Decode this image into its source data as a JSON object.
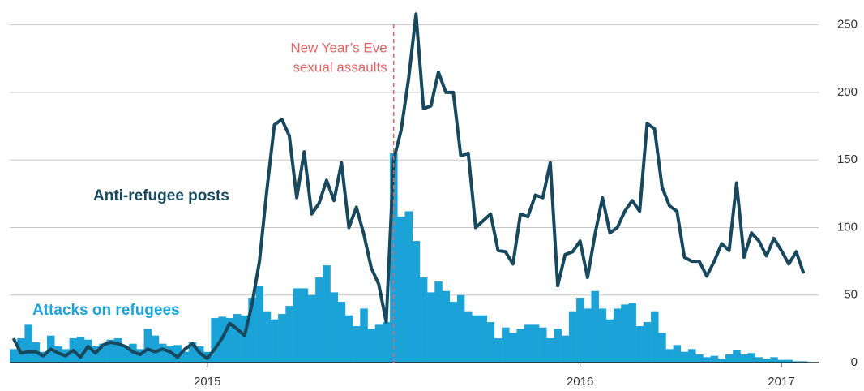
{
  "chart_data": {
    "type": "combo",
    "annotation": {
      "text": [
        "New Year’s Eve",
        "sexual assaults"
      ],
      "x": 2016.0,
      "color": "#e06666"
    },
    "x": [
      2014.98,
      2015.0,
      2015.02,
      2015.04,
      2015.06,
      2015.08,
      2015.1,
      2015.12,
      2015.14,
      2015.16,
      2015.18,
      2015.2,
      2015.22,
      2015.24,
      2015.26,
      2015.28,
      2015.3,
      2015.32,
      2015.34,
      2015.36,
      2015.38,
      2015.4,
      2015.42,
      2015.44,
      2015.46,
      2015.48,
      2015.5,
      2015.52,
      2015.54,
      2015.56,
      2015.58,
      2015.6,
      2015.62,
      2015.64,
      2015.66,
      2015.68,
      2015.7,
      2015.72,
      2015.74,
      2015.76,
      2015.78,
      2015.8,
      2015.82,
      2015.84,
      2015.86,
      2015.88,
      2015.9,
      2015.92,
      2015.94,
      2015.96,
      2015.98,
      2016.0,
      2016.02,
      2016.04,
      2016.06,
      2016.08,
      2016.1,
      2016.12,
      2016.14,
      2016.16,
      2016.18,
      2016.2,
      2016.22,
      2016.24,
      2016.26,
      2016.28,
      2016.3,
      2016.32,
      2016.34,
      2016.36,
      2016.38,
      2016.4,
      2016.42,
      2016.44,
      2016.46,
      2016.48,
      2016.5,
      2016.52,
      2016.54,
      2016.56,
      2016.58,
      2016.6,
      2016.62,
      2016.64,
      2016.66,
      2016.68,
      2016.7,
      2016.72,
      2016.74,
      2016.76,
      2016.78,
      2016.8,
      2016.82,
      2016.84,
      2016.86,
      2016.88,
      2016.9,
      2016.92,
      2016.94,
      2016.96,
      2016.98,
      2017.0,
      2017.02,
      2017.04,
      2017.06,
      2017.08,
      2017.1
    ],
    "series": [
      {
        "name": "Attacks on refugees",
        "type": "bar",
        "color": "#1ba3d8",
        "values": [
          10,
          18,
          28,
          15,
          8,
          20,
          12,
          10,
          18,
          19,
          17,
          12,
          14,
          17,
          18,
          12,
          14,
          10,
          25,
          20,
          14,
          12,
          13,
          8,
          15,
          12,
          8,
          33,
          34,
          33,
          36,
          35,
          48,
          57,
          38,
          32,
          36,
          42,
          55,
          55,
          50,
          63,
          72,
          52,
          45,
          35,
          27,
          40,
          25,
          28,
          30,
          155,
          108,
          112,
          90,
          63,
          52,
          60,
          53,
          45,
          50,
          38,
          35,
          35,
          30,
          18,
          26,
          22,
          25,
          28,
          28,
          26,
          18,
          25,
          20,
          38,
          48,
          40,
          53,
          40,
          32,
          40,
          43,
          44,
          27,
          30,
          38,
          22,
          10,
          13,
          8,
          10,
          6,
          4,
          5,
          3,
          6,
          9,
          6,
          7,
          4,
          3,
          4,
          2,
          2,
          1,
          1
        ]
      },
      {
        "name": "Anti-refugee posts",
        "type": "line",
        "color": "#17485e",
        "values": [
          18,
          7,
          8,
          8,
          5,
          10,
          7,
          5,
          9,
          4,
          12,
          7,
          13,
          15,
          14,
          12,
          8,
          6,
          10,
          8,
          10,
          8,
          4,
          10,
          14,
          7,
          3,
          10,
          18,
          29,
          25,
          20,
          43,
          75,
          128,
          176,
          180,
          168,
          122,
          156,
          110,
          118,
          135,
          120,
          148,
          100,
          115,
          95,
          70,
          58,
          30,
          150,
          172,
          210,
          258,
          188,
          190,
          215,
          200,
          200,
          153,
          155,
          100,
          105,
          110,
          83,
          82,
          73,
          110,
          108,
          124,
          122,
          148,
          57,
          80,
          82,
          90,
          63,
          95,
          122,
          96,
          100,
          112,
          120,
          112,
          177,
          173,
          130,
          116,
          112,
          78,
          75,
          75,
          64,
          75,
          88,
          83,
          133,
          78,
          96,
          90,
          79,
          92,
          83,
          73,
          82,
          66
        ]
      }
    ],
    "xlim": [
      2014.97,
      2017.14
    ],
    "xticks": [
      {
        "value": 2015.5,
        "label": "2015"
      },
      {
        "value": 2016.5,
        "label": "2016"
      },
      {
        "value": 2017.04,
        "label": "2017"
      }
    ],
    "ylim": [
      0,
      260
    ],
    "yticks": [
      0,
      50,
      100,
      150,
      200,
      250
    ],
    "grid": true
  }
}
